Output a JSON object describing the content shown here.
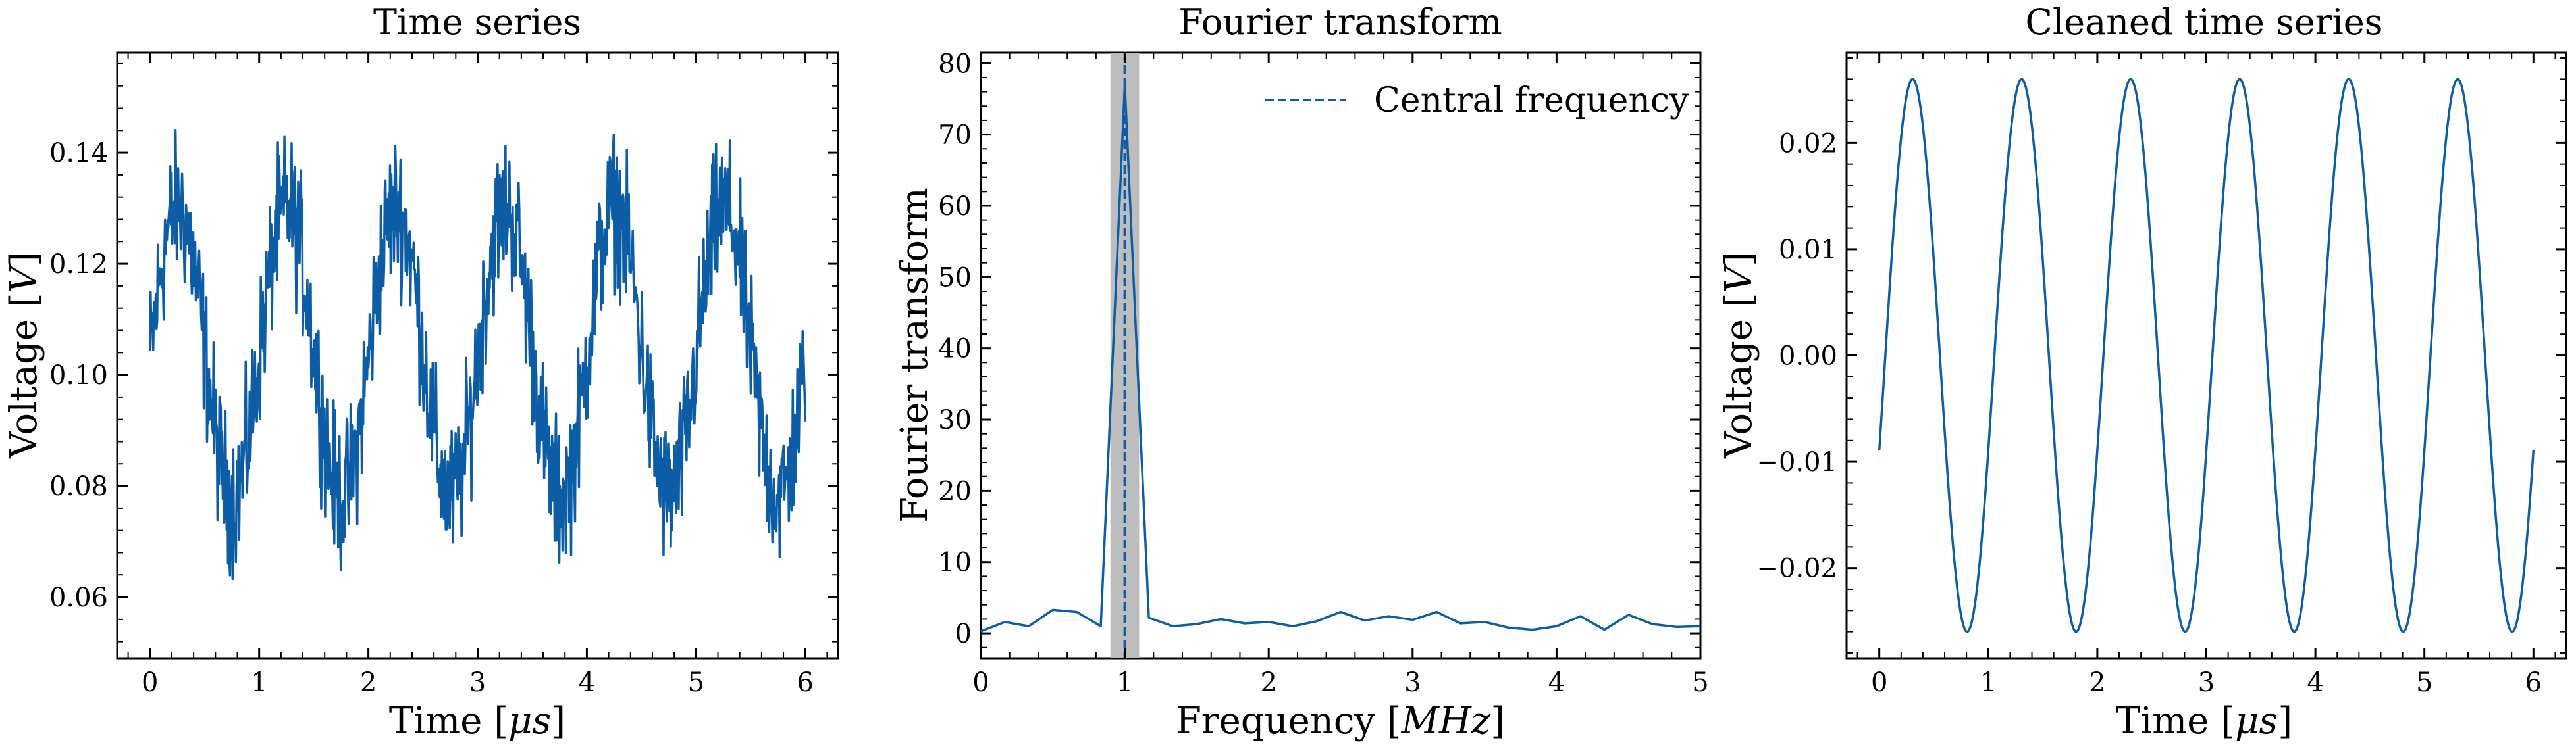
{
  "colors": {
    "series": "#0C5DA5",
    "band": "#BDBDBD",
    "axes": "#000000",
    "background": "#FFFFFF"
  },
  "chart_data": [
    {
      "type": "line",
      "title": "Time series",
      "xlabel": "Time [μs]",
      "ylabel": "Voltage [V]",
      "xlim": [
        -0.3,
        6.3
      ],
      "ylim": [
        0.049,
        0.158
      ],
      "xticks": [
        0,
        1,
        2,
        3,
        4,
        5,
        6
      ],
      "xtick_labels": [
        "0",
        "1",
        "2",
        "3",
        "4",
        "5",
        "6"
      ],
      "yticks": [
        0.06,
        0.08,
        0.1,
        0.12,
        0.14
      ],
      "ytick_labels": [
        "0.06",
        "0.08",
        "0.10",
        "0.12",
        "0.14"
      ],
      "series": [
        {
          "description": "noisy sinusoid: offset 0.104 V, amplitude ~0.026 V, frequency 1 MHz, noise ~±0.012 V, 1000 samples over 0–6 μs",
          "x_range": [
            0,
            6
          ],
          "offset": 0.104,
          "amplitude": 0.026,
          "frequency_MHz": 1.0,
          "noise": 0.012,
          "n_samples": 1000
        }
      ],
      "grid": false
    },
    {
      "type": "line",
      "title": "Fourier transform",
      "xlabel": "Frequency [MHz]",
      "ylabel": "Fourier transform",
      "xlim": [
        0,
        5
      ],
      "ylim": [
        -3.5,
        81.5
      ],
      "xticks": [
        0,
        1,
        2,
        3,
        4,
        5
      ],
      "xtick_labels": [
        "0",
        "1",
        "2",
        "3",
        "4",
        "5"
      ],
      "yticks": [
        0,
        10,
        20,
        30,
        40,
        50,
        60,
        70,
        80
      ],
      "ytick_labels": [
        "0",
        "10",
        "20",
        "30",
        "40",
        "50",
        "60",
        "70",
        "80"
      ],
      "x": [
        0.0,
        0.167,
        0.333,
        0.5,
        0.667,
        0.833,
        1.0,
        1.167,
        1.333,
        1.5,
        1.667,
        1.833,
        2.0,
        2.167,
        2.333,
        2.5,
        2.667,
        2.833,
        3.0,
        3.167,
        3.333,
        3.5,
        3.667,
        3.833,
        4.0,
        4.167,
        4.333,
        4.5,
        4.667,
        4.833,
        5.0
      ],
      "y": [
        0.3,
        1.6,
        1.0,
        3.3,
        3.0,
        1.0,
        77.0,
        2.2,
        1.0,
        1.3,
        2.0,
        1.4,
        1.6,
        1.0,
        1.7,
        3.0,
        1.8,
        2.4,
        1.9,
        3.0,
        1.4,
        1.6,
        0.8,
        0.5,
        1.0,
        2.4,
        0.5,
        2.6,
        1.3,
        0.9,
        1.0
      ],
      "central_frequency": 1.0,
      "band": [
        0.9,
        1.1
      ],
      "legend": {
        "entries": [
          "Central frequency"
        ],
        "placement": "upper right"
      },
      "grid": false
    },
    {
      "type": "line",
      "title": "Cleaned time series",
      "xlabel": "Time [μs]",
      "ylabel": "Voltage [V]",
      "xlim": [
        -0.3,
        6.3
      ],
      "ylim": [
        -0.0285,
        0.0285
      ],
      "xticks": [
        0,
        1,
        2,
        3,
        4,
        5,
        6
      ],
      "xtick_labels": [
        "0",
        "1",
        "2",
        "3",
        "4",
        "5",
        "6"
      ],
      "yticks": [
        -0.02,
        -0.01,
        0.0,
        0.01,
        0.02
      ],
      "ytick_labels": [
        "−0.02",
        "−0.01",
        "0.00",
        "0.01",
        "0.02"
      ],
      "series": [
        {
          "description": "clean sinusoid: amplitude 0.026 V, frequency 1 MHz, peaks near t = 0.3, 1.3, 2.3 ... μs, starting at about -0.009 V",
          "x_range": [
            0,
            6
          ],
          "amplitude": 0.026,
          "frequency_MHz": 1.0,
          "phase_rad": -0.35
        }
      ],
      "grid": false
    }
  ]
}
